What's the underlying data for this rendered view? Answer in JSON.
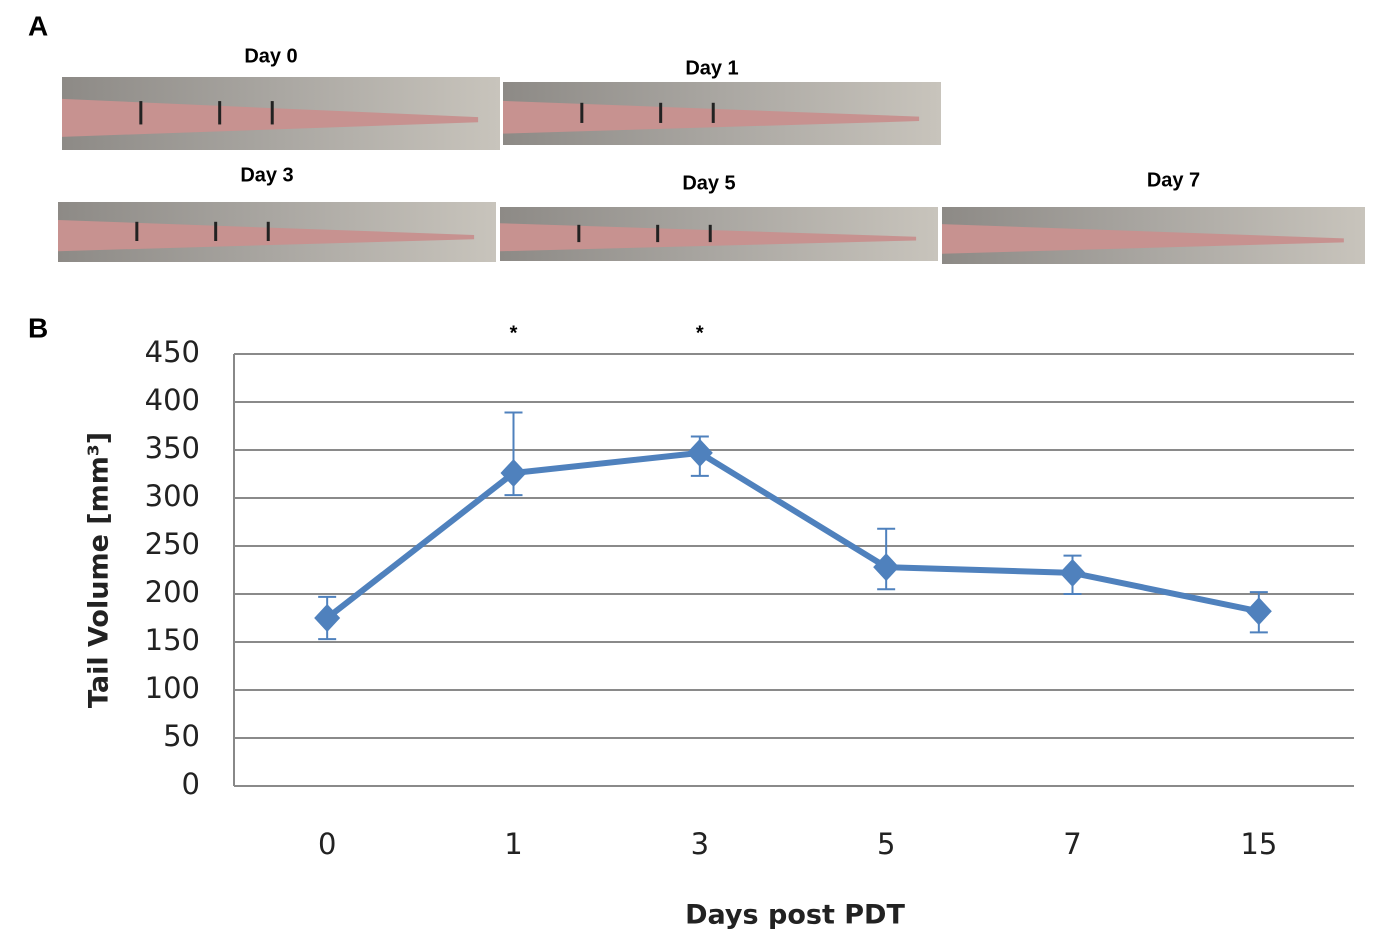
{
  "panel_labels": [
    "A",
    "B"
  ],
  "photos": [
    {
      "label": "Day 0"
    },
    {
      "label": "Day 1"
    },
    {
      "label": "Day 3"
    },
    {
      "label": "Day 5"
    },
    {
      "label": "Day 7"
    }
  ],
  "chart_data": {
    "type": "line",
    "y_label": "Tail Volume [mm³]",
    "x_label": "Days post PDT",
    "categories": [
      "0",
      "1",
      "3",
      "5",
      "7",
      "15"
    ],
    "values": [
      175,
      326,
      347,
      228,
      222,
      182
    ],
    "error_plus": [
      22,
      63,
      17,
      40,
      18,
      20
    ],
    "error_minus": [
      22,
      23,
      24,
      23,
      22,
      22
    ],
    "significance_labels": [
      null,
      "*",
      "*",
      null,
      null,
      null
    ],
    "color": "#4f81bd",
    "ylim": [
      0,
      450
    ],
    "yticks": [
      0,
      50,
      100,
      150,
      200,
      250,
      300,
      350,
      400,
      450
    ],
    "grid": true
  }
}
